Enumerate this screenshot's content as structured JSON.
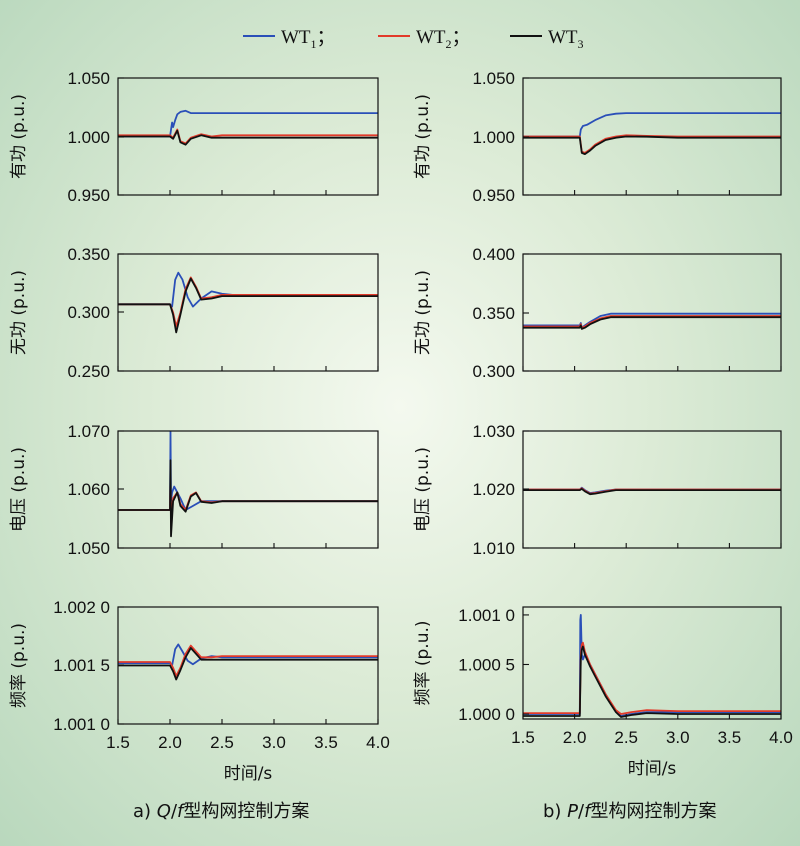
{
  "legend": [
    {
      "base": "WT",
      "sub": "1",
      "sep": "；",
      "color": "#2a4fb8"
    },
    {
      "base": "WT",
      "sub": "2",
      "sep": "；",
      "color": "#e23a2a"
    },
    {
      "base": "WT",
      "sub": "3",
      "sep": "",
      "color": "#111111"
    }
  ],
  "captions": {
    "a": {
      "prefix": "a) ",
      "var1": "Q",
      "slash": "/",
      "var2": "f",
      "suffix": "型构网控制方案"
    },
    "b": {
      "prefix": "b) ",
      "var1": "P",
      "slash": "/",
      "var2": "f",
      "suffix": "型构网控制方案"
    }
  },
  "xlabel": "时间/s",
  "chart_data": [
    {
      "type": "line",
      "id": "a-active",
      "ylabel": "有功 (p.u.)",
      "xlim": [
        1.5,
        4.0
      ],
      "ylim": [
        0.95,
        1.05
      ],
      "yticks": [
        "1.050",
        "1.000",
        "0.950"
      ],
      "xticks": [],
      "series": [
        {
          "color": "#2a4fb8",
          "x": [
            1.5,
            2.0,
            2.02,
            2.03,
            2.05,
            2.07,
            2.1,
            2.15,
            2.2,
            2.3,
            2.5,
            3.0,
            4.0
          ],
          "y": [
            1.0,
            1.0,
            1.012,
            1.008,
            1.014,
            1.019,
            1.021,
            1.022,
            1.02,
            1.02,
            1.02,
            1.02,
            1.02
          ]
        },
        {
          "color": "#e23a2a",
          "x": [
            1.5,
            2.0,
            2.03,
            2.07,
            2.1,
            2.15,
            2.2,
            2.3,
            2.4,
            2.5,
            3.0,
            4.0
          ],
          "y": [
            1.001,
            1.001,
            0.999,
            1.006,
            0.996,
            0.994,
            0.999,
            1.002,
            1.0,
            1.001,
            1.001,
            1.001
          ]
        },
        {
          "color": "#111111",
          "x": [
            1.5,
            2.0,
            2.03,
            2.07,
            2.1,
            2.15,
            2.2,
            2.3,
            2.4,
            2.5,
            3.0,
            4.0
          ],
          "y": [
            1.0,
            1.0,
            0.998,
            1.005,
            0.995,
            0.993,
            0.998,
            1.001,
            0.999,
            0.999,
            0.999,
            0.999
          ]
        }
      ]
    },
    {
      "type": "line",
      "id": "a-reactive",
      "ylabel": "无功 (p.u.)",
      "xlim": [
        1.5,
        4.0
      ],
      "ylim": [
        0.25,
        0.35
      ],
      "yticks": [
        "0.350",
        "0.300",
        "0.250"
      ],
      "xticks": [],
      "series": [
        {
          "color": "#2a4fb8",
          "x": [
            1.5,
            2.0,
            2.02,
            2.05,
            2.08,
            2.12,
            2.17,
            2.22,
            2.3,
            2.4,
            2.5,
            2.6,
            3.0,
            4.0
          ],
          "y": [
            0.307,
            0.307,
            0.305,
            0.328,
            0.334,
            0.328,
            0.313,
            0.305,
            0.312,
            0.318,
            0.316,
            0.315,
            0.315,
            0.315
          ]
        },
        {
          "color": "#e23a2a",
          "x": [
            1.5,
            2.0,
            2.03,
            2.06,
            2.1,
            2.15,
            2.2,
            2.25,
            2.3,
            2.4,
            2.5,
            3.0,
            4.0
          ],
          "y": [
            0.307,
            0.307,
            0.3,
            0.288,
            0.3,
            0.32,
            0.33,
            0.322,
            0.312,
            0.313,
            0.315,
            0.315,
            0.315
          ]
        },
        {
          "color": "#111111",
          "x": [
            1.5,
            2.0,
            2.03,
            2.06,
            2.1,
            2.15,
            2.2,
            2.25,
            2.3,
            2.4,
            2.5,
            3.0,
            4.0
          ],
          "y": [
            0.307,
            0.307,
            0.298,
            0.283,
            0.298,
            0.318,
            0.329,
            0.321,
            0.311,
            0.312,
            0.314,
            0.314,
            0.314
          ]
        }
      ]
    },
    {
      "type": "line",
      "id": "a-voltage",
      "ylabel": "电压 (p.u.)",
      "xlim": [
        1.5,
        4.0
      ],
      "ylim": [
        1.05,
        1.07
      ],
      "yticks": [
        "1.070",
        "1.060",
        "1.050"
      ],
      "xticks": [],
      "series": [
        {
          "color": "#2a4fb8",
          "x": [
            1.5,
            2.0,
            2.005,
            2.01,
            2.02,
            2.04,
            2.07,
            2.1,
            2.15,
            2.2,
            2.3,
            2.5,
            3.0,
            4.0
          ],
          "y": [
            1.0565,
            1.0565,
            1.07,
            1.058,
            1.0595,
            1.0605,
            1.0595,
            1.0585,
            1.0565,
            1.057,
            1.058,
            1.058,
            1.058,
            1.058
          ]
        },
        {
          "color": "#e23a2a",
          "x": [
            1.5,
            2.0,
            2.005,
            2.01,
            2.03,
            2.07,
            2.1,
            2.15,
            2.2,
            2.25,
            2.3,
            2.4,
            2.5,
            3.0,
            4.0
          ],
          "y": [
            1.0565,
            1.0565,
            1.062,
            1.055,
            1.0585,
            1.0595,
            1.0575,
            1.0565,
            1.059,
            1.0595,
            1.058,
            1.0578,
            1.058,
            1.058,
            1.058
          ]
        },
        {
          "color": "#111111",
          "x": [
            1.5,
            2.0,
            2.005,
            2.01,
            2.03,
            2.07,
            2.1,
            2.15,
            2.2,
            2.25,
            2.3,
            2.4,
            2.5,
            3.0,
            4.0
          ],
          "y": [
            1.0565,
            1.0565,
            1.065,
            1.052,
            1.058,
            1.0595,
            1.0572,
            1.0562,
            1.0588,
            1.0594,
            1.0579,
            1.0577,
            1.058,
            1.058,
            1.058
          ]
        }
      ]
    },
    {
      "type": "line",
      "id": "a-frequency",
      "ylabel": "频率 (p.u.)",
      "xlim": [
        1.5,
        4.0
      ],
      "ylim": [
        1.001,
        1.002
      ],
      "yticks": [
        "1.002 0",
        "1.001 5",
        "1.001 0"
      ],
      "xticks": [
        "1.5",
        "2.0",
        "2.5",
        "3.0",
        "3.5",
        "4.0"
      ],
      "series": [
        {
          "color": "#2a4fb8",
          "x": [
            1.5,
            2.0,
            2.02,
            2.05,
            2.08,
            2.12,
            2.17,
            2.22,
            2.3,
            2.4,
            2.5,
            3.0,
            4.0
          ],
          "y": [
            1.00152,
            1.00152,
            1.0015,
            1.00164,
            1.00168,
            1.00162,
            1.00154,
            1.00151,
            1.00156,
            1.00158,
            1.00157,
            1.00157,
            1.00157
          ]
        },
        {
          "color": "#e23a2a",
          "x": [
            1.5,
            2.0,
            2.03,
            2.06,
            2.1,
            2.15,
            2.2,
            2.25,
            2.3,
            2.4,
            2.5,
            3.0,
            4.0
          ],
          "y": [
            1.00153,
            1.00153,
            1.00148,
            1.00141,
            1.00148,
            1.0016,
            1.00167,
            1.00162,
            1.00157,
            1.00157,
            1.00158,
            1.00158,
            1.00158
          ]
        },
        {
          "color": "#111111",
          "x": [
            1.5,
            2.0,
            2.03,
            2.06,
            2.1,
            2.15,
            2.2,
            2.25,
            2.3,
            2.4,
            2.5,
            3.0,
            4.0
          ],
          "y": [
            1.0015,
            1.0015,
            1.00145,
            1.00138,
            1.00146,
            1.00157,
            1.00165,
            1.0016,
            1.00155,
            1.00155,
            1.00155,
            1.00155,
            1.00155
          ]
        }
      ]
    },
    {
      "type": "line",
      "id": "b-active",
      "ylabel": "有功 (p.u.)",
      "xlim": [
        1.5,
        4.0
      ],
      "ylim": [
        0.95,
        1.05
      ],
      "yticks": [
        "1.050",
        "1.000",
        "0.950"
      ],
      "xticks": [],
      "series": [
        {
          "color": "#2a4fb8",
          "x": [
            1.5,
            2.05,
            2.06,
            2.08,
            2.12,
            2.2,
            2.3,
            2.4,
            2.5,
            2.7,
            3.0,
            4.0
          ],
          "y": [
            1.0,
            1.0,
            1.006,
            1.009,
            1.01,
            1.014,
            1.018,
            1.0195,
            1.02,
            1.02,
            1.02,
            1.02
          ]
        },
        {
          "color": "#e23a2a",
          "x": [
            1.5,
            2.05,
            2.07,
            2.1,
            2.15,
            2.2,
            2.3,
            2.4,
            2.5,
            2.7,
            3.0,
            4.0
          ],
          "y": [
            1.0,
            1.0,
            0.987,
            0.986,
            0.989,
            0.993,
            0.998,
            1.0,
            1.001,
            1.0005,
            1.0,
            1.0
          ]
        },
        {
          "color": "#111111",
          "x": [
            1.5,
            2.05,
            2.07,
            2.1,
            2.15,
            2.2,
            2.3,
            2.4,
            2.5,
            2.7,
            3.0,
            4.0
          ],
          "y": [
            0.999,
            0.999,
            0.986,
            0.985,
            0.988,
            0.992,
            0.997,
            0.999,
            1.0,
            0.9998,
            0.999,
            0.999
          ]
        }
      ]
    },
    {
      "type": "line",
      "id": "b-reactive",
      "ylabel": "无功 (p.u.)",
      "xlim": [
        1.5,
        4.0
      ],
      "ylim": [
        0.3,
        0.4
      ],
      "yticks": [
        "0.400",
        "0.350",
        "0.300"
      ],
      "xticks": [],
      "series": [
        {
          "color": "#2a4fb8",
          "x": [
            1.5,
            2.05,
            2.06,
            2.07,
            2.1,
            2.15,
            2.25,
            2.35,
            2.5,
            2.8,
            3.0,
            4.0
          ],
          "y": [
            0.339,
            0.339,
            0.341,
            0.337,
            0.339,
            0.342,
            0.347,
            0.349,
            0.349,
            0.349,
            0.349,
            0.349
          ]
        },
        {
          "color": "#e23a2a",
          "x": [
            1.5,
            2.05,
            2.06,
            2.07,
            2.1,
            2.15,
            2.25,
            2.35,
            2.5,
            2.8,
            3.0,
            4.0
          ],
          "y": [
            0.338,
            0.338,
            0.34,
            0.337,
            0.338,
            0.341,
            0.345,
            0.347,
            0.347,
            0.347,
            0.347,
            0.347
          ]
        },
        {
          "color": "#111111",
          "x": [
            1.5,
            2.05,
            2.06,
            2.07,
            2.1,
            2.15,
            2.25,
            2.35,
            2.5,
            2.8,
            3.0,
            4.0
          ],
          "y": [
            0.337,
            0.337,
            0.339,
            0.336,
            0.337,
            0.34,
            0.344,
            0.346,
            0.346,
            0.346,
            0.346,
            0.346
          ]
        }
      ]
    },
    {
      "type": "line",
      "id": "b-voltage",
      "ylabel": "电压 (p.u.)",
      "xlim": [
        1.5,
        4.0
      ],
      "ylim": [
        1.01,
        1.03
      ],
      "yticks": [
        "1.030",
        "1.020",
        "1.010"
      ],
      "xticks": [],
      "series": [
        {
          "color": "#2a4fb8",
          "x": [
            1.5,
            2.05,
            2.07,
            2.1,
            2.15,
            2.2,
            2.3,
            2.4,
            2.5,
            3.0,
            4.0
          ],
          "y": [
            1.02,
            1.02,
            1.0203,
            1.0199,
            1.0194,
            1.0195,
            1.0198,
            1.02,
            1.02,
            1.02,
            1.02
          ]
        },
        {
          "color": "#e23a2a",
          "x": [
            1.5,
            2.05,
            2.07,
            2.1,
            2.15,
            2.2,
            2.3,
            2.4,
            2.5,
            3.0,
            4.0
          ],
          "y": [
            1.02,
            1.02,
            1.0202,
            1.0198,
            1.0193,
            1.0194,
            1.0197,
            1.02,
            1.02,
            1.02,
            1.02
          ]
        },
        {
          "color": "#111111",
          "x": [
            1.5,
            2.05,
            2.07,
            2.1,
            2.15,
            2.2,
            2.3,
            2.4,
            2.5,
            3.0,
            4.0
          ],
          "y": [
            1.0199,
            1.0199,
            1.0201,
            1.0197,
            1.0192,
            1.0193,
            1.0196,
            1.0199,
            1.0199,
            1.0199,
            1.0199
          ]
        }
      ]
    },
    {
      "type": "line",
      "id": "b-frequency",
      "ylabel": "频率 (p.u.)",
      "xlim": [
        1.5,
        4.0
      ],
      "ylim": [
        0.99995,
        1.00108
      ],
      "yticks": [
        "1.001 0",
        "1.000 5",
        "1.000 0"
      ],
      "ytickvals": [
        1.001,
        1.0005,
        1.0
      ],
      "xticks": [
        "1.5",
        "2.0",
        "2.5",
        "3.0",
        "3.5",
        "4.0"
      ],
      "series": [
        {
          "color": "#2a4fb8",
          "x": [
            1.5,
            2.05,
            2.055,
            2.06,
            2.07,
            2.08,
            2.1,
            2.15,
            2.2,
            2.3,
            2.4,
            2.45,
            2.55,
            2.7,
            3.0,
            4.0
          ],
          "y": [
            1.0,
            1.0,
            1.00095,
            1.001,
            1.0006,
            1.00055,
            1.0006,
            1.0005,
            1.0004,
            1.0002,
            1.00003,
            0.99998,
            1.0,
            1.00002,
            1.00002,
            1.00002
          ]
        },
        {
          "color": "#e23a2a",
          "x": [
            1.5,
            2.05,
            2.06,
            2.07,
            2.08,
            2.1,
            2.15,
            2.2,
            2.3,
            2.4,
            2.45,
            2.55,
            2.7,
            3.0,
            4.0
          ],
          "y": [
            1.00001,
            1.00001,
            1.0006,
            1.0007,
            1.00072,
            1.00063,
            1.0005,
            1.0004,
            1.0002,
            1.00004,
            1.0,
            1.00002,
            1.00004,
            1.00003,
            1.00003
          ]
        },
        {
          "color": "#111111",
          "x": [
            1.5,
            2.05,
            2.06,
            2.07,
            2.08,
            2.1,
            2.15,
            2.2,
            2.3,
            2.4,
            2.45,
            2.55,
            2.7,
            3.0,
            4.0
          ],
          "y": [
            0.99998,
            0.99998,
            1.00055,
            1.00065,
            1.00068,
            1.0006,
            1.00048,
            1.00038,
            1.00018,
            1.00002,
            0.99997,
            0.99999,
            1.00001,
            1.0,
            1.0
          ]
        }
      ]
    }
  ]
}
